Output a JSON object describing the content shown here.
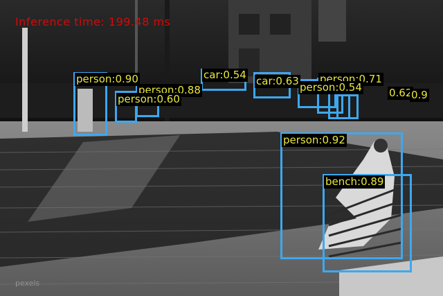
{
  "inference_text": "Inference time: 199.48 ms",
  "colors": {
    "box": "#3da8f0",
    "label_text": "#e8e840",
    "label_bg": "#000000",
    "inference": "#d20a0a"
  },
  "detections": [
    {
      "text": "person:0.90"
    },
    {
      "text": "person:0.88"
    },
    {
      "text": "person:0.60"
    },
    {
      "text": "car:0.54"
    },
    {
      "text": "car:0.63"
    },
    {
      "text": "person:0.71"
    },
    {
      "text": "person:0.54"
    },
    {
      "text": "0.62"
    },
    {
      "text": "0.9"
    },
    {
      "text": "person:0.92"
    },
    {
      "text": "bench:0.89"
    }
  ]
}
